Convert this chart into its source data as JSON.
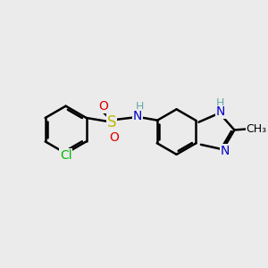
{
  "background_color": "#ebebeb",
  "bond_color": "#000000",
  "bond_width": 1.8,
  "atoms": {
    "Cl": {
      "color": "#00bb00",
      "fontsize": 10
    },
    "S": {
      "color": "#bbbb00",
      "fontsize": 12
    },
    "O": {
      "color": "#dd0000",
      "fontsize": 10
    },
    "N": {
      "color": "#0000cc",
      "fontsize": 10
    },
    "H": {
      "color": "#66aaaa",
      "fontsize": 9
    },
    "CH3": {
      "color": "#000000",
      "fontsize": 9
    }
  },
  "figsize": [
    3.0,
    3.0
  ],
  "dpi": 100,
  "xlim": [
    0,
    12
  ],
  "ylim": [
    0,
    12
  ]
}
